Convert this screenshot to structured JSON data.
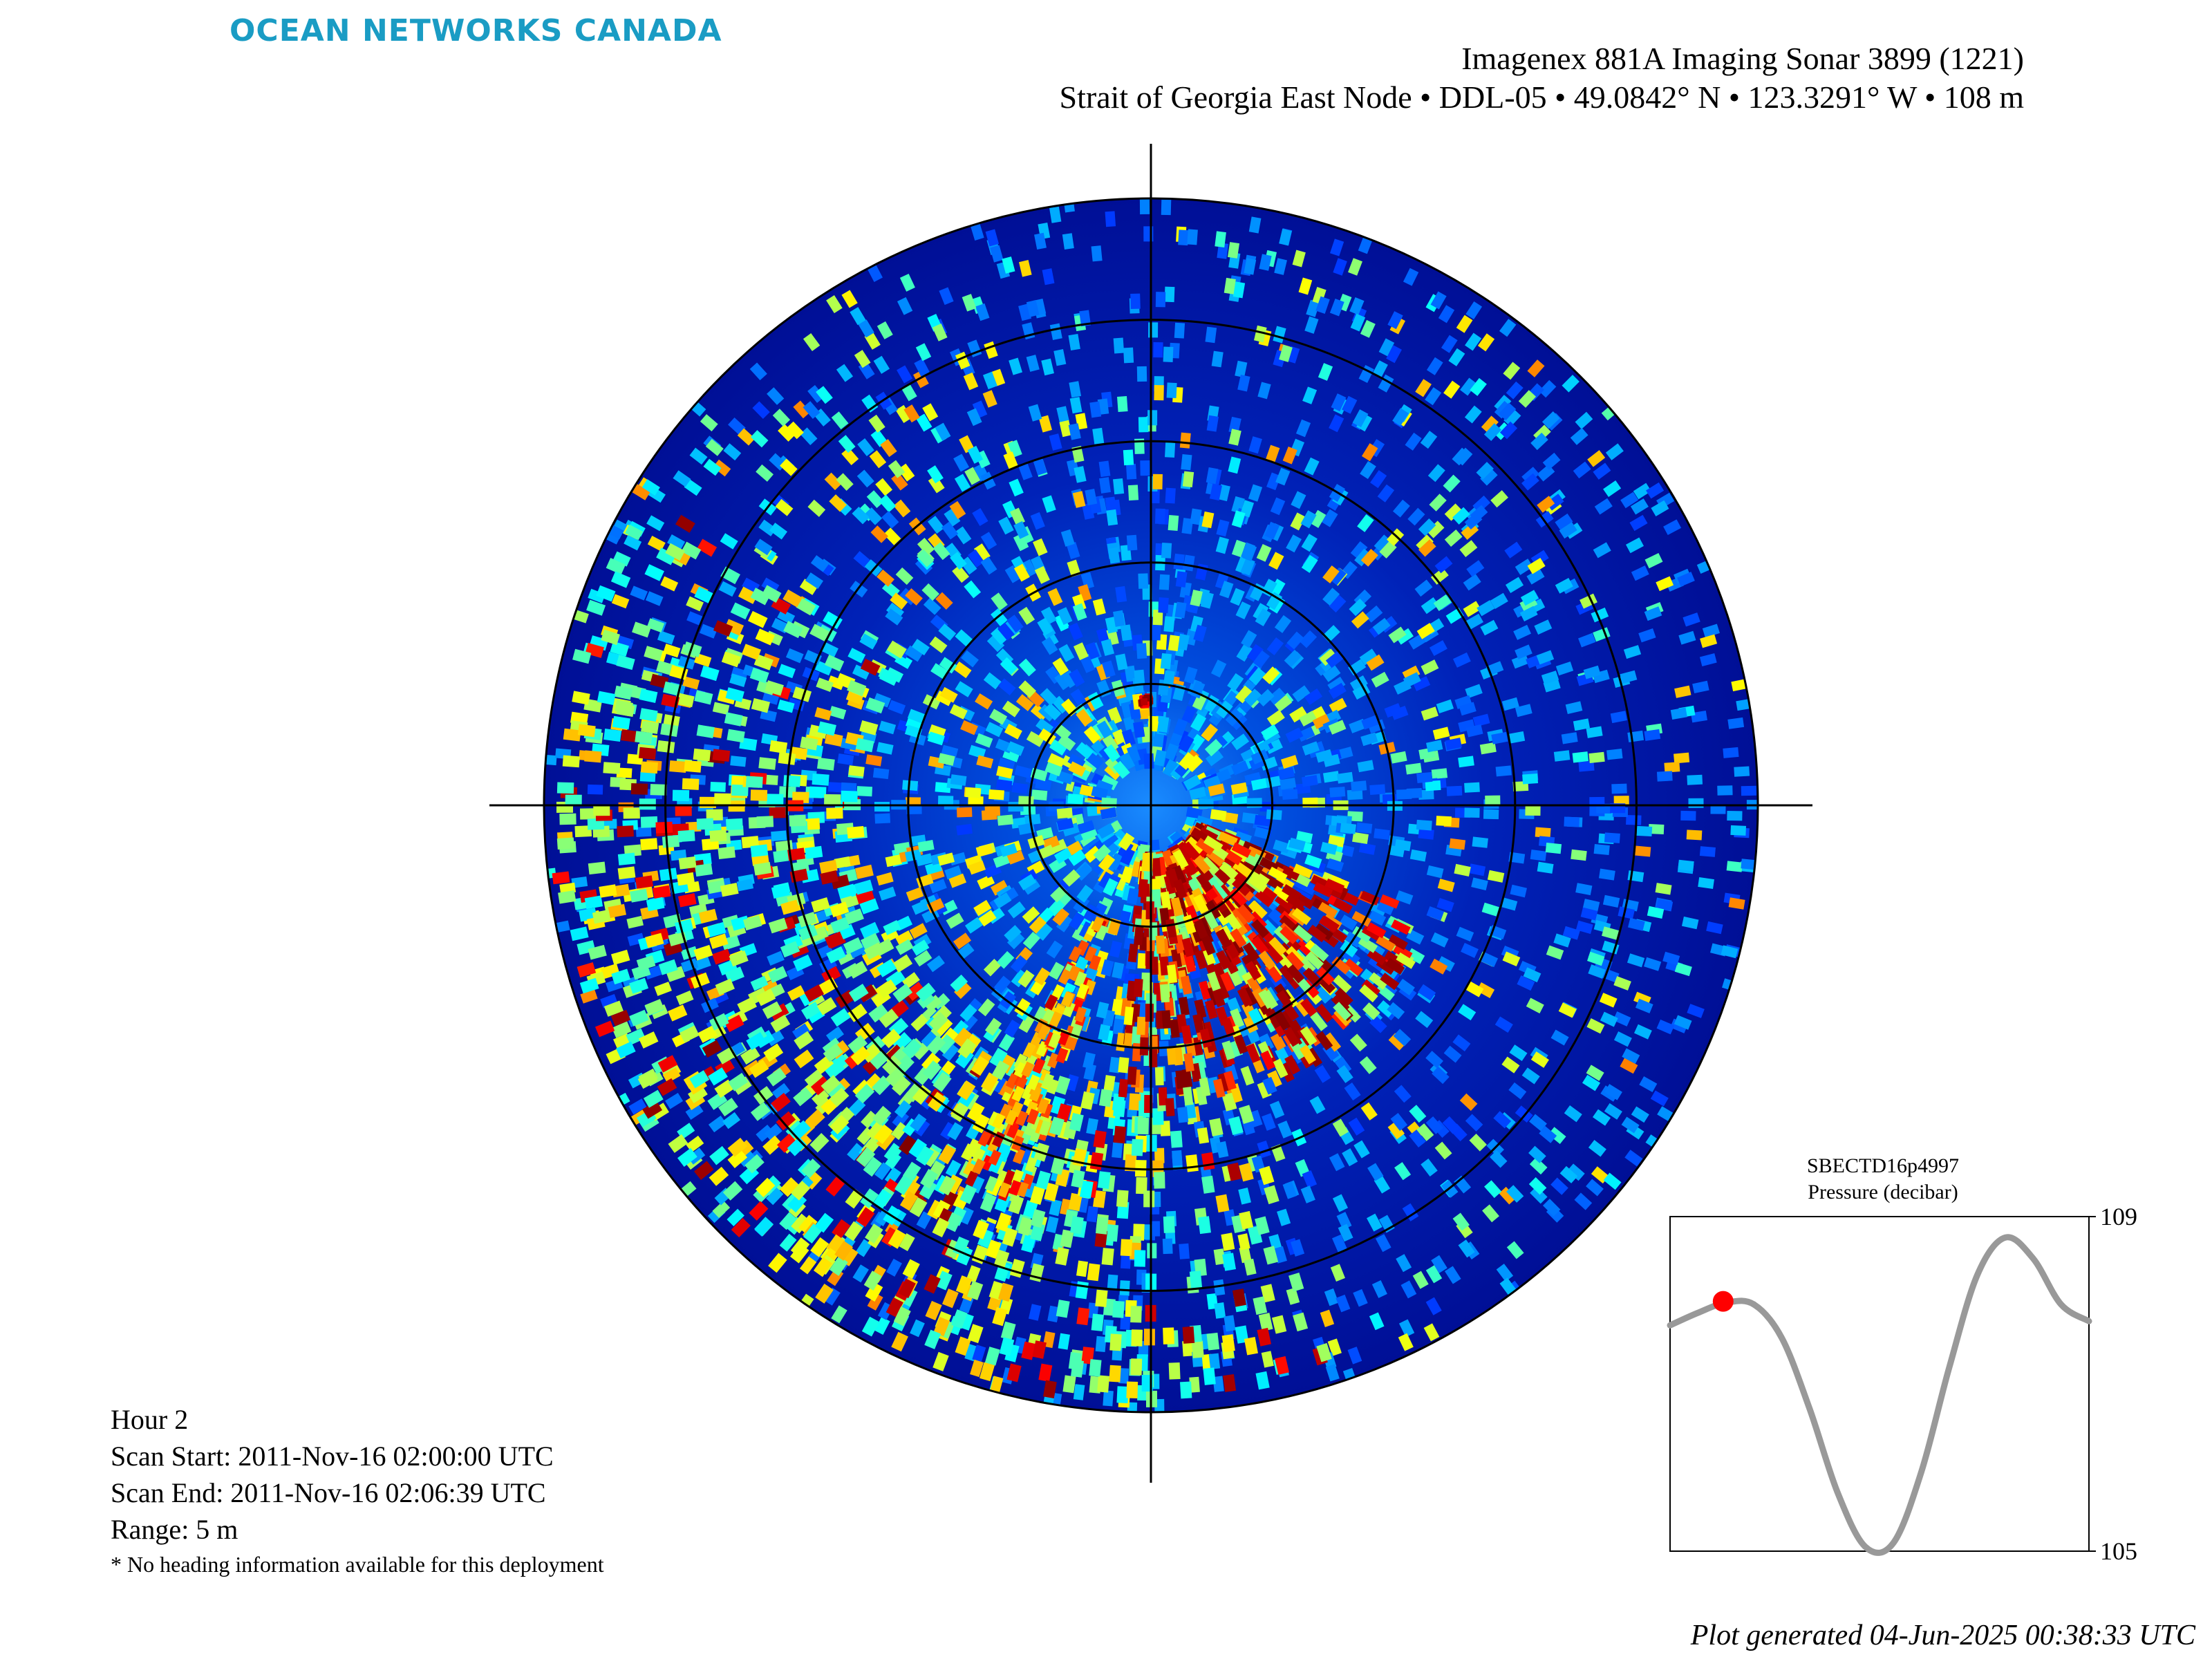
{
  "header": {
    "brand": "OCEAN NETWORKS CANADA",
    "title_line1": "Imagenex 881A Imaging Sonar 3899 (1221)",
    "title_line2": "Strait of Georgia East Node • DDL-05 • 49.0842° N • 123.3291° W • 108 m"
  },
  "scan_info": {
    "hour": "Hour 2",
    "scan_start": "Scan Start: 2011-Nov-16 02:00:00 UTC",
    "scan_end": "Scan End: 2011-Nov-16 02:06:39 UTC",
    "range": "Range: 5 m",
    "note": "* No heading information available for this deployment"
  },
  "sonar": {
    "colormap": "jet",
    "background_color": "#00008b",
    "ring_count": 5,
    "strong_returns_sector": "south-southeast",
    "crosshair": "north-up"
  },
  "pressure_chart": {
    "instrument": "SBECTD16p4997",
    "variable": "Pressure (decibar)",
    "line_color": "#999999",
    "marker_color": "#ff0000"
  },
  "chart_data": {
    "type": "line",
    "title": "SBECTD16p4997",
    "subtitle": "Pressure (decibar)",
    "ylim": [
      105,
      109
    ],
    "yticks": [
      109,
      105
    ],
    "y_axis_side": "right",
    "series": [
      {
        "values": [
          107.7,
          107.85,
          107.97,
          107.95,
          107.55,
          106.7,
          105.7,
          105.05,
          105.1,
          105.95,
          107.2,
          108.3,
          108.75,
          108.5,
          107.95,
          107.75
        ]
      }
    ],
    "current_point_index": 2
  },
  "footer": {
    "generated": "Plot generated 04-Jun-2025 00:38:33 UTC"
  },
  "colors": {
    "brand": "#1a9cc4",
    "axis": "#000000"
  }
}
